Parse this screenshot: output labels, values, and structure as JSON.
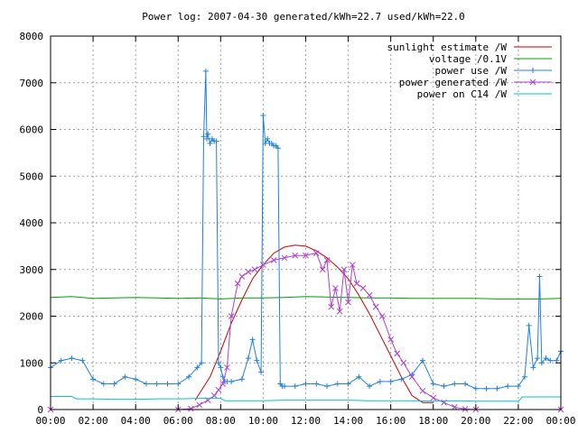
{
  "chart_data": {
    "type": "line",
    "title": "Power log: 2007-04-30 generated/kWh=22.7 used/kWh=22.0",
    "xlabel": "",
    "ylabel": "",
    "xlim": [
      0,
      24
    ],
    "ylim": [
      0,
      8000
    ],
    "x_ticks": [
      0,
      2,
      4,
      6,
      8,
      10,
      12,
      14,
      16,
      18,
      20,
      22,
      24
    ],
    "x_tick_labels": [
      "00:00",
      "02:00",
      "04:00",
      "06:00",
      "08:00",
      "10:00",
      "12:00",
      "14:00",
      "16:00",
      "18:00",
      "20:00",
      "22:00",
      "00:00"
    ],
    "y_ticks": [
      0,
      1000,
      2000,
      3000,
      4000,
      5000,
      6000,
      7000,
      8000
    ],
    "y_tick_labels": [
      "0",
      "1000",
      "2000",
      "3000",
      "4000",
      "5000",
      "6000",
      "7000",
      "8000"
    ],
    "grid": true,
    "legend_position": "top-right",
    "series": [
      {
        "name": "sunlight estimate /W",
        "color": "#cc0000",
        "style": "line",
        "x": [
          6.8,
          7.5,
          8.0,
          8.5,
          9.0,
          9.5,
          10.0,
          10.5,
          11.0,
          11.5,
          12.0,
          12.5,
          13.0,
          13.5,
          14.0,
          14.5,
          15.0,
          15.5,
          16.0,
          16.5,
          17.0,
          17.5,
          18.0
        ],
        "y": [
          200,
          700,
          1250,
          1850,
          2350,
          2800,
          3100,
          3350,
          3480,
          3520,
          3500,
          3400,
          3250,
          3050,
          2800,
          2450,
          2050,
          1600,
          1150,
          700,
          300,
          150,
          150
        ]
      },
      {
        "name": "voltage /0.1V",
        "color": "#00a000",
        "style": "line",
        "x": [
          0,
          1,
          2,
          3,
          4,
          5,
          6,
          7,
          8,
          9,
          10,
          11,
          12,
          13,
          14,
          15,
          16,
          17,
          18,
          19,
          20,
          21,
          22,
          23,
          24
        ],
        "y": [
          2400,
          2420,
          2380,
          2390,
          2400,
          2390,
          2380,
          2390,
          2370,
          2390,
          2390,
          2400,
          2420,
          2410,
          2400,
          2390,
          2390,
          2380,
          2380,
          2380,
          2380,
          2370,
          2370,
          2370,
          2380
        ]
      },
      {
        "name": "power use /W",
        "color": "#2080e0",
        "style": "linespoints",
        "x": [
          0,
          0.5,
          1.0,
          1.5,
          2.0,
          2.5,
          3.0,
          3.5,
          4.0,
          4.5,
          5.0,
          5.5,
          6.0,
          6.5,
          6.9,
          7.1,
          7.2,
          7.3,
          7.35,
          7.4,
          7.5,
          7.6,
          7.7,
          7.8,
          7.9,
          8.0,
          8.1,
          8.2,
          8.3,
          8.5,
          9.0,
          9.3,
          9.5,
          9.7,
          9.9,
          10.0,
          10.1,
          10.2,
          10.3,
          10.4,
          10.5,
          10.6,
          10.7,
          10.8,
          10.9,
          11.0,
          11.5,
          12.0,
          12.5,
          13.0,
          13.5,
          14.0,
          14.5,
          15.0,
          15.5,
          16.0,
          16.5,
          17.0,
          17.5,
          18.0,
          18.5,
          19.0,
          19.5,
          20.0,
          20.5,
          21.0,
          21.5,
          22.0,
          22.3,
          22.5,
          22.7,
          22.9,
          23.0,
          23.1,
          23.3,
          23.5,
          23.8,
          24.0
        ],
        "y": [
          900,
          1050,
          1100,
          1050,
          650,
          550,
          550,
          700,
          650,
          550,
          550,
          550,
          550,
          700,
          900,
          1000,
          5850,
          7250,
          5800,
          5900,
          5700,
          5800,
          5750,
          5750,
          1000,
          900,
          700,
          600,
          600,
          600,
          650,
          1100,
          1500,
          1050,
          800,
          6300,
          5700,
          5800,
          5700,
          5700,
          5650,
          5650,
          5600,
          550,
          500,
          500,
          500,
          550,
          550,
          500,
          550,
          550,
          700,
          500,
          600,
          600,
          650,
          750,
          1050,
          550,
          500,
          550,
          550,
          450,
          450,
          450,
          500,
          500,
          700,
          1800,
          900,
          1100,
          2850,
          1000,
          1100,
          1050,
          1050,
          1250
        ]
      },
      {
        "name": "power generated /W",
        "color": "#b040d0",
        "style": "linespoints",
        "x": [
          0,
          6.0,
          6.6,
          7.0,
          7.4,
          7.7,
          7.9,
          8.1,
          8.3,
          8.5,
          8.8,
          9.0,
          9.3,
          9.6,
          10.0,
          10.5,
          11.0,
          11.5,
          12.0,
          12.5,
          12.8,
          13.0,
          13.2,
          13.4,
          13.6,
          13.8,
          14.0,
          14.2,
          14.4,
          14.7,
          15.0,
          15.3,
          15.6,
          16.0,
          16.3,
          16.6,
          17.0,
          17.5,
          18.0,
          18.5,
          19.0,
          19.5,
          20.0,
          24.0
        ],
        "y": [
          0,
          0,
          20,
          100,
          200,
          300,
          420,
          550,
          900,
          2000,
          2700,
          2850,
          2950,
          3000,
          3100,
          3200,
          3250,
          3300,
          3300,
          3350,
          3000,
          3200,
          2200,
          2600,
          2100,
          3000,
          2300,
          3100,
          2700,
          2600,
          2450,
          2200,
          2000,
          1500,
          1200,
          1000,
          700,
          400,
          250,
          150,
          50,
          10,
          0,
          0
        ]
      },
      {
        "name": "power on C14 /W",
        "color": "#00c8c8",
        "style": "line",
        "x": [
          0,
          1,
          1.2,
          2,
          3,
          4,
          5,
          6,
          7,
          8,
          8.2,
          9,
          10,
          11,
          12,
          13,
          14,
          15,
          16,
          17,
          18,
          19,
          20,
          21,
          22,
          22.2,
          23,
          24
        ],
        "y": [
          280,
          280,
          230,
          230,
          220,
          220,
          230,
          230,
          240,
          240,
          190,
          190,
          190,
          200,
          200,
          200,
          200,
          190,
          190,
          190,
          180,
          190,
          180,
          180,
          180,
          270,
          270,
          270
        ]
      }
    ]
  }
}
